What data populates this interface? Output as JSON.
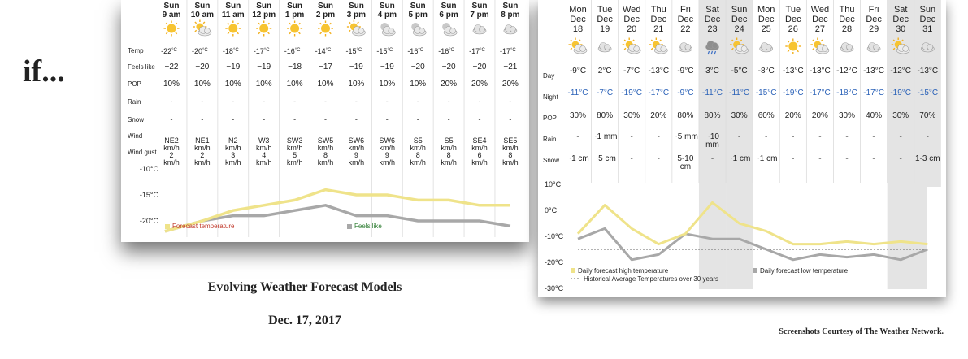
{
  "slide": {
    "if_text": "if...",
    "title": "Evolving Weather Forecast Models",
    "date": "Dec. 17, 2017",
    "credit": "Screenshots Courtesy of The Weather Network."
  },
  "hourly": {
    "row_labels": [
      "Temp",
      "Feels like",
      "POP",
      "Rain",
      "Snow",
      "Wind",
      "Wind gust"
    ],
    "unit_c": "°C",
    "columns": [
      {
        "day": "Sun",
        "time": "9 am",
        "icon": "sun-icon",
        "temp": "-22",
        "feels": "−22",
        "pop": "10%",
        "rain": "-",
        "snow": "-",
        "wind": [
          "NE2",
          "km/h"
        ],
        "gust": [
          "2",
          "km/h"
        ]
      },
      {
        "day": "Sun",
        "time": "10 am",
        "icon": "sun-cloud-icon",
        "temp": "-20",
        "feels": "−20",
        "pop": "10%",
        "rain": "-",
        "snow": "-",
        "wind": [
          "NE1",
          "km/h"
        ],
        "gust": [
          "2",
          "km/h"
        ]
      },
      {
        "day": "Sun",
        "time": "11 am",
        "icon": "sun-icon",
        "temp": "-18",
        "feels": "−19",
        "pop": "10%",
        "rain": "-",
        "snow": "-",
        "wind": [
          "N2",
          "km/h"
        ],
        "gust": [
          "3",
          "km/h"
        ]
      },
      {
        "day": "Sun",
        "time": "12 pm",
        "icon": "sun-icon",
        "temp": "-17",
        "feels": "−19",
        "pop": "10%",
        "rain": "-",
        "snow": "-",
        "wind": [
          "W3",
          "km/h"
        ],
        "gust": [
          "4",
          "km/h"
        ]
      },
      {
        "day": "Sun",
        "time": "1 pm",
        "icon": "sun-icon",
        "temp": "-16",
        "feels": "−18",
        "pop": "10%",
        "rain": "-",
        "snow": "-",
        "wind": [
          "SW3",
          "km/h"
        ],
        "gust": [
          "5",
          "km/h"
        ]
      },
      {
        "day": "Sun",
        "time": "2 pm",
        "icon": "sun-icon",
        "temp": "-14",
        "feels": "−17",
        "pop": "10%",
        "rain": "-",
        "snow": "-",
        "wind": [
          "SW5",
          "km/h"
        ],
        "gust": [
          "8",
          "km/h"
        ]
      },
      {
        "day": "Sun",
        "time": "3 pm",
        "icon": "sun-cloud-icon",
        "temp": "-15",
        "feels": "−19",
        "pop": "10%",
        "rain": "-",
        "snow": "-",
        "wind": [
          "SW6",
          "km/h"
        ],
        "gust": [
          "9",
          "km/h"
        ]
      },
      {
        "day": "Sun",
        "time": "4 pm",
        "icon": "moon-cloud-icon",
        "temp": "-15",
        "feels": "−19",
        "pop": "10%",
        "rain": "-",
        "snow": "-",
        "wind": [
          "SW6",
          "km/h"
        ],
        "gust": [
          "9",
          "km/h"
        ]
      },
      {
        "day": "Sun",
        "time": "5 pm",
        "icon": "moon-cloud-icon",
        "temp": "-16",
        "feels": "−20",
        "pop": "10%",
        "rain": "-",
        "snow": "-",
        "wind": [
          "S5",
          "km/h"
        ],
        "gust": [
          "8",
          "km/h"
        ]
      },
      {
        "day": "Sun",
        "time": "6 pm",
        "icon": "moon-cloud-icon",
        "temp": "-16",
        "feels": "−20",
        "pop": "20%",
        "rain": "-",
        "snow": "-",
        "wind": [
          "S5",
          "km/h"
        ],
        "gust": [
          "8",
          "km/h"
        ]
      },
      {
        "day": "Sun",
        "time": "7 pm",
        "icon": "cloud-icon",
        "temp": "-17",
        "feels": "−20",
        "pop": "20%",
        "rain": "-",
        "snow": "-",
        "wind": [
          "SE4",
          "km/h"
        ],
        "gust": [
          "6",
          "km/h"
        ]
      },
      {
        "day": "Sun",
        "time": "8 pm",
        "icon": "cloud-icon",
        "temp": "-17",
        "feels": "−21",
        "pop": "20%",
        "rain": "-",
        "snow": "-",
        "wind": [
          "SE5",
          "km/h"
        ],
        "gust": [
          "8",
          "km/h"
        ]
      }
    ]
  },
  "daily": {
    "row_labels": [
      "Day",
      "Night",
      "POP",
      "Rain",
      "Snow"
    ],
    "columns": [
      {
        "dow": "Mon",
        "mon": "Dec",
        "dd": "18",
        "icon": "sun-cloud-icon",
        "day": "-9°C",
        "night": "-11°C",
        "pop": "30%",
        "rain": "-",
        "snow": [
          "~1 cm"
        ],
        "shade": false
      },
      {
        "dow": "Tue",
        "mon": "Dec",
        "dd": "19",
        "icon": "cloud-icon",
        "day": "2°C",
        "night": "-7°C",
        "pop": "80%",
        "rain": "~1 mm",
        "snow": [
          "~5 cm"
        ],
        "shade": false
      },
      {
        "dow": "Wed",
        "mon": "Dec",
        "dd": "20",
        "icon": "sun-cloud-icon",
        "day": "-7°C",
        "night": "-19°C",
        "pop": "30%",
        "rain": "-",
        "snow": [
          "-"
        ],
        "shade": false
      },
      {
        "dow": "Thu",
        "mon": "Dec",
        "dd": "21",
        "icon": "sun-cloud-icon",
        "day": "-13°C",
        "night": "-17°C",
        "pop": "20%",
        "rain": "-",
        "snow": [
          "-"
        ],
        "shade": false
      },
      {
        "dow": "Fri",
        "mon": "Dec",
        "dd": "22",
        "icon": "cloud-icon",
        "day": "-9°C",
        "night": "-9°C",
        "pop": "80%",
        "rain": "~5 mm",
        "snow": [
          "5-10",
          "cm"
        ],
        "shade": false
      },
      {
        "dow": "Sat",
        "mon": "Dec",
        "dd": "23",
        "icon": "rain-cloud-icon",
        "day": "3°C",
        "night": "-11°C",
        "pop": "80%",
        "rain": "~10 mm",
        "snow": [
          "-"
        ],
        "shade": true
      },
      {
        "dow": "Sun",
        "mon": "Dec",
        "dd": "24",
        "icon": "sun-cloud-icon",
        "day": "-5°C",
        "night": "-11°C",
        "pop": "30%",
        "rain": "-",
        "snow": [
          "~1 cm"
        ],
        "shade": true
      },
      {
        "dow": "Mon",
        "mon": "Dec",
        "dd": "25",
        "icon": "cloud-icon",
        "day": "-8°C",
        "night": "-15°C",
        "pop": "60%",
        "rain": "-",
        "snow": [
          "~1 cm"
        ],
        "shade": false
      },
      {
        "dow": "Tue",
        "mon": "Dec",
        "dd": "26",
        "icon": "sun-icon",
        "day": "-13°C",
        "night": "-19°C",
        "pop": "20%",
        "rain": "-",
        "snow": [
          "-"
        ],
        "shade": false
      },
      {
        "dow": "Wed",
        "mon": "Dec",
        "dd": "27",
        "icon": "sun-cloud-icon",
        "day": "-13°C",
        "night": "-17°C",
        "pop": "20%",
        "rain": "-",
        "snow": [
          "-"
        ],
        "shade": false
      },
      {
        "dow": "Thu",
        "mon": "Dec",
        "dd": "28",
        "icon": "cloud-icon",
        "day": "-12°C",
        "night": "-18°C",
        "pop": "30%",
        "rain": "-",
        "snow": [
          "-"
        ],
        "shade": false
      },
      {
        "dow": "Fri",
        "mon": "Dec",
        "dd": "29",
        "icon": "cloud-icon",
        "day": "-13°C",
        "night": "-17°C",
        "pop": "40%",
        "rain": "-",
        "snow": [
          "-"
        ],
        "shade": false
      },
      {
        "dow": "Sat",
        "mon": "Dec",
        "dd": "30",
        "icon": "sun-cloud-icon",
        "day": "-12°C",
        "night": "-19°C",
        "pop": "30%",
        "rain": "-",
        "snow": [
          "-"
        ],
        "shade": true
      },
      {
        "dow": "Sun",
        "mon": "Dec",
        "dd": "31",
        "icon": "cloud-icon",
        "day": "-13°C",
        "night": "-15°C",
        "pop": "70%",
        "rain": "-",
        "snow": [
          "1-3 cm"
        ],
        "shade": true
      }
    ]
  },
  "chart_data": [
    {
      "type": "line",
      "x": [
        "9 am",
        "10 am",
        "11 am",
        "12 pm",
        "1 pm",
        "2 pm",
        "3 pm",
        "4 pm",
        "5 pm",
        "6 pm",
        "7 pm",
        "8 pm"
      ],
      "series": [
        {
          "name": "Forecast temperature",
          "values": [
            -22,
            -20,
            -18,
            -17,
            -16,
            -14,
            -15,
            -15,
            -16,
            -16,
            -17,
            -17
          ],
          "color": "#efe38a"
        },
        {
          "name": "Feels like",
          "values": [
            -22,
            -20,
            -19,
            -19,
            -18,
            -17,
            -19,
            -19,
            -20,
            -20,
            -20,
            -21
          ],
          "color": "#a8a8a8"
        }
      ],
      "yticks": [
        "-10°C",
        "-15°C",
        "-20°C"
      ],
      "ylim": [
        -22,
        -10
      ],
      "legend_colors": {
        "forecast": "#c0392b",
        "feels": "#2e7d32"
      }
    },
    {
      "type": "line",
      "x": [
        "Dec 18",
        "Dec 19",
        "Dec 20",
        "Dec 21",
        "Dec 22",
        "Dec 23",
        "Dec 24",
        "Dec 25",
        "Dec 26",
        "Dec 27",
        "Dec 28",
        "Dec 29",
        "Dec 30",
        "Dec 31"
      ],
      "series": [
        {
          "name": "Daily forecast high temperature",
          "values": [
            -9,
            2,
            -7,
            -13,
            -9,
            3,
            -5,
            -8,
            -13,
            -13,
            -12,
            -13,
            -12,
            -13
          ],
          "color": "#efe38a"
        },
        {
          "name": "Daily forecast low temperature",
          "values": [
            -11,
            -7,
            -19,
            -17,
            -9,
            -11,
            -11,
            -15,
            -19,
            -17,
            -18,
            -17,
            -19,
            -15
          ],
          "color": "#a8a8a8"
        }
      ],
      "historical_average": {
        "name": "Historical Average Temperatures over 30 years",
        "high": -3,
        "low": -15
      },
      "yticks": [
        "10°C",
        "0°C",
        "-10°C",
        "-20°C",
        "-30°C"
      ],
      "ylim": [
        -30,
        10
      ]
    }
  ]
}
